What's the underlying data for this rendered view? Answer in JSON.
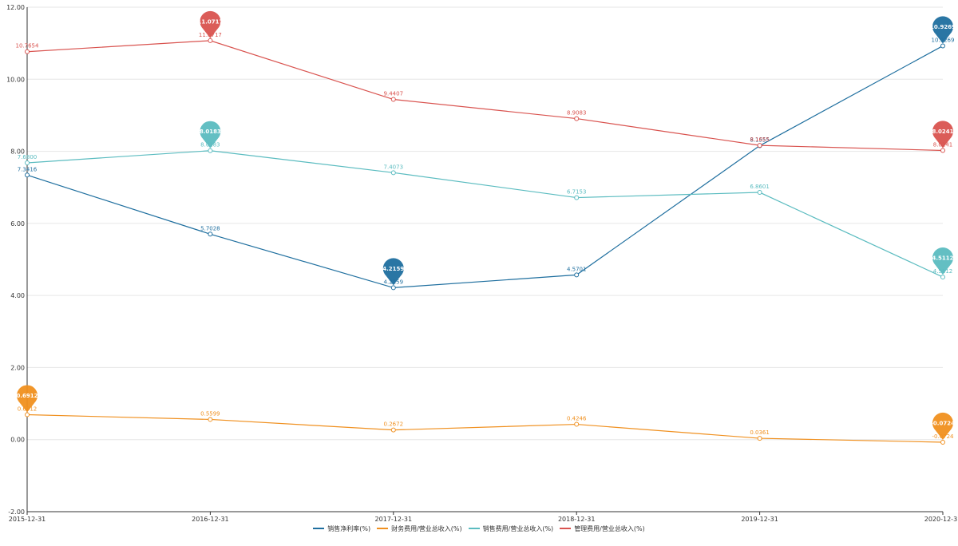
{
  "chart_data": {
    "type": "line",
    "categories": [
      "2015-12-31",
      "2016-12-31",
      "2017-12-31",
      "2018-12-31",
      "2019-12-31",
      "2020-12-31"
    ],
    "ylim": [
      -2,
      12
    ],
    "yticks": [
      "-2.00",
      "0.00",
      "2.00",
      "4.00",
      "6.00",
      "8.00",
      "10.00",
      "12.00"
    ],
    "grid": true,
    "legend_position": "bottom-center",
    "series": [
      {
        "name": "销售净利率(%)",
        "color": "#1f6f9f",
        "values": [
          7.3416,
          5.7028,
          4.2159,
          4.5701,
          8.1555,
          10.9269
        ],
        "labels": [
          "7.3416",
          "5.7028",
          "4.2159",
          "4.5701",
          "8.1555",
          "10.9269"
        ],
        "markers": [
          {
            "index": 2,
            "label": "4.2159"
          },
          {
            "index": 5,
            "label": "10.9269"
          }
        ]
      },
      {
        "name": "财务费用/营业总收入(%)",
        "color": "#f0901f",
        "values": [
          0.6912,
          0.5599,
          0.2672,
          0.4246,
          0.0361,
          -0.0724
        ],
        "labels": [
          "0.6912",
          "0.5599",
          "0.2672",
          "0.4246",
          "0.0361",
          "-0.0724"
        ],
        "markers": [
          {
            "index": 0,
            "label": "0.6912"
          },
          {
            "index": 5,
            "label": "-0.0724"
          }
        ]
      },
      {
        "name": "销售费用/营业总收入(%)",
        "color": "#5bbcc0",
        "values": [
          7.68,
          8.0183,
          7.4073,
          6.7153,
          6.8601,
          4.5112
        ],
        "labels": [
          "7.6800",
          "8.0183",
          "7.4073",
          "6.7153",
          "6.8601",
          "4.5112"
        ],
        "markers": [
          {
            "index": 1,
            "label": "8.0183"
          },
          {
            "index": 5,
            "label": "4.5112"
          }
        ]
      },
      {
        "name": "管理费用/营业总收入(%)",
        "color": "#d9534f",
        "values": [
          10.7654,
          11.0717,
          9.4407,
          8.9083,
          8.1655,
          8.0241
        ],
        "labels": [
          "10.7654",
          "11.0717",
          "9.4407",
          "8.9083",
          "8.1655",
          "8.0241"
        ],
        "markers": [
          {
            "index": 1,
            "label": "11.0717"
          },
          {
            "index": 5,
            "label": "8.0241"
          }
        ]
      }
    ]
  }
}
